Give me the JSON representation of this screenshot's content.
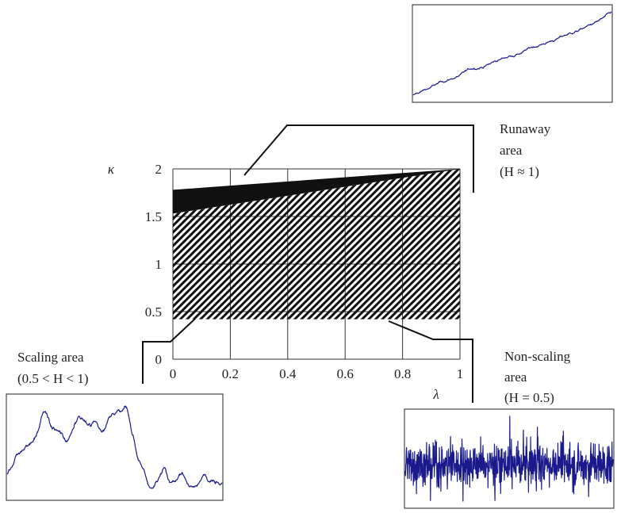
{
  "chart_data": {
    "type": "area",
    "title": "",
    "xlabel": "λ",
    "ylabel": "κ",
    "xlim": [
      0,
      1
    ],
    "ylim": [
      0,
      2
    ],
    "x_ticks": [
      "0",
      "0.2",
      "0.4",
      "0.6",
      "0.8",
      "1"
    ],
    "y_ticks": [
      "0",
      "0.5",
      "1",
      "1.5",
      "2"
    ],
    "x_tick_values": [
      0,
      0.2,
      0.4,
      0.6,
      0.8,
      1
    ],
    "y_tick_values": [
      0,
      0.5,
      1,
      1.5,
      2
    ],
    "grid": true,
    "regions": [
      {
        "name": "Runaway area",
        "fill": "solid",
        "color": "#111111",
        "polygon": [
          [
            0,
            1.78
          ],
          [
            1,
            2.0
          ],
          [
            1,
            2.0
          ],
          [
            0.9,
            2.0
          ],
          [
            0,
            1.55
          ]
        ],
        "upper": [
          [
            0,
            1.78
          ],
          [
            1,
            2.0
          ]
        ],
        "lower": [
          [
            0,
            1.53
          ],
          [
            1,
            2.0
          ]
        ]
      },
      {
        "name": "Scaling area",
        "fill": "hatched",
        "color": "#111111",
        "upper": [
          [
            0,
            1.53
          ],
          [
            1,
            2.0
          ]
        ],
        "lower": [
          [
            0,
            0.42
          ],
          [
            1,
            0.42
          ]
        ]
      }
    ],
    "annotations": {
      "runaway": {
        "lines": [
          "Runaway",
          "area",
          "(H ≈ 1)"
        ]
      },
      "scaling": {
        "lines": [
          "Scaling area",
          "(0.5 < H < 1)"
        ]
      },
      "non_scaling": {
        "lines": [
          "Non-scaling",
          "area",
          "(H = 0.5)"
        ]
      }
    },
    "insets": [
      {
        "name": "runaway-trace",
        "behavior": "trending",
        "color": "#1a1a8c"
      },
      {
        "name": "scaling-trace",
        "behavior": "persistent",
        "color": "#1a1a8c"
      },
      {
        "name": "non-scaling-trace",
        "behavior": "white-noise",
        "color": "#1a1a8c"
      }
    ]
  }
}
